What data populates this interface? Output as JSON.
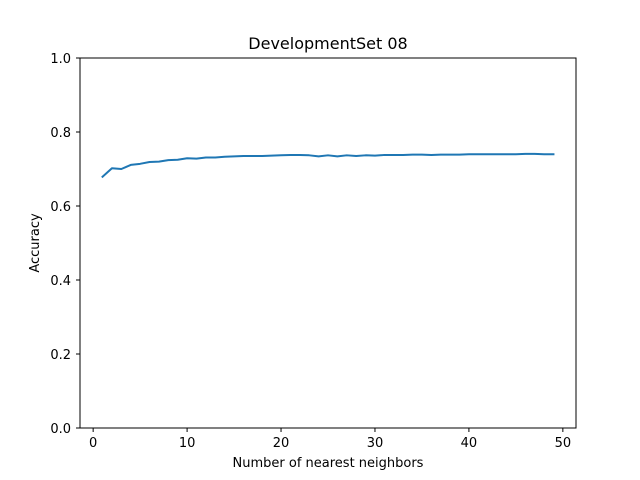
{
  "chart_data": {
    "type": "line",
    "title": "DevelopmentSet 08",
    "xlabel": "Number of nearest neighbors",
    "ylabel": "Accuracy",
    "xlim": [
      -1.4,
      51.4
    ],
    "ylim": [
      0.0,
      1.0
    ],
    "xticks": [
      0,
      10,
      20,
      30,
      40,
      50
    ],
    "yticks": [
      0.0,
      0.2,
      0.4,
      0.6,
      0.8,
      1.0
    ],
    "xtick_labels": [
      "0",
      "10",
      "20",
      "30",
      "40",
      "50"
    ],
    "ytick_labels": [
      "0.0",
      "0.2",
      "0.4",
      "0.6",
      "0.8",
      "1.0"
    ],
    "grid": false,
    "legend": "none",
    "series": [
      {
        "color": "#1f77b4",
        "x": [
          1,
          2,
          3,
          4,
          5,
          6,
          7,
          8,
          9,
          10,
          11,
          12,
          13,
          14,
          15,
          16,
          17,
          18,
          19,
          20,
          21,
          22,
          23,
          24,
          25,
          26,
          27,
          28,
          29,
          30,
          31,
          32,
          33,
          34,
          35,
          36,
          37,
          38,
          39,
          40,
          41,
          42,
          43,
          44,
          45,
          46,
          47,
          48,
          49
        ],
        "y": [
          0.679,
          0.702,
          0.7,
          0.711,
          0.714,
          0.719,
          0.72,
          0.724,
          0.725,
          0.729,
          0.728,
          0.731,
          0.731,
          0.733,
          0.734,
          0.735,
          0.735,
          0.735,
          0.736,
          0.737,
          0.738,
          0.738,
          0.737,
          0.734,
          0.737,
          0.734,
          0.737,
          0.735,
          0.737,
          0.736,
          0.738,
          0.738,
          0.738,
          0.739,
          0.739,
          0.738,
          0.739,
          0.739,
          0.739,
          0.74,
          0.74,
          0.74,
          0.74,
          0.74,
          0.74,
          0.741,
          0.741,
          0.74,
          0.74
        ]
      }
    ]
  }
}
